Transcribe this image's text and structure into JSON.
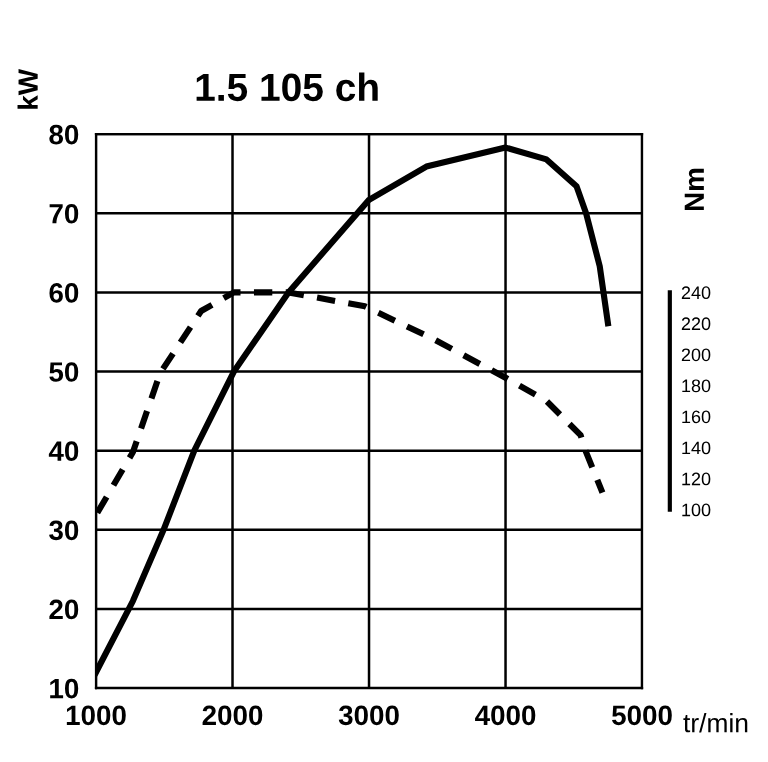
{
  "chart_data": {
    "type": "line",
    "title": "1.5 105 ch",
    "ylabel": "kW",
    "y2label": "Nm",
    "xlabel": "tr/min",
    "xlim": [
      1000,
      5000
    ],
    "xticks": [
      1000,
      2000,
      3000,
      4000,
      5000
    ],
    "ylim": [
      10,
      80
    ],
    "yticks": [
      10,
      20,
      30,
      40,
      50,
      60,
      70,
      80
    ],
    "y2lim": [
      -15,
      342
    ],
    "y2ticks": [
      100,
      120,
      140,
      160,
      180,
      200,
      220,
      240
    ],
    "grid": true,
    "legend": false,
    "series": [
      {
        "color": "#000000",
        "line_style": "solid",
        "x": [
          1000,
          1270,
          1495,
          1720,
          2010,
          2410,
          3000,
          3420,
          4000,
          4300,
          4520,
          4590,
          4690,
          4750
        ],
        "values": [
          12,
          21,
          30,
          40,
          50,
          60,
          71.7,
          75.9,
          78.3,
          76.8,
          73.4,
          70,
          63.3,
          56.1
        ]
      },
      {
        "color": "#000000",
        "line_style": "dashed",
        "axis": "y2",
        "x": [
          1010,
          1270,
          1470,
          1770,
          2010,
          2410,
          2970,
          3470,
          4000,
          4300,
          4550,
          4590,
          4710
        ],
        "values": [
          98,
          137,
          188,
          228,
          240,
          240,
          231,
          210,
          185,
          170,
          148,
          137,
          111
        ]
      }
    ]
  }
}
